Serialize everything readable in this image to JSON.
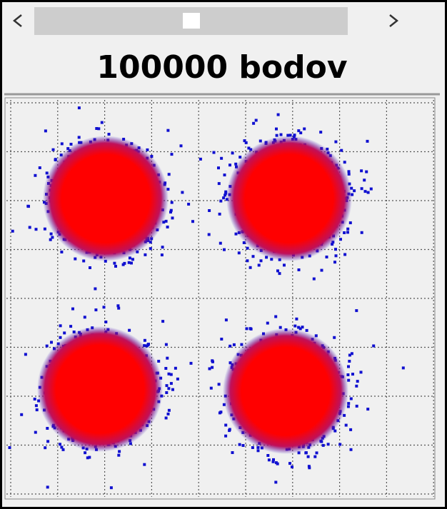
{
  "header": {
    "title": "100000 bodov"
  }
}
